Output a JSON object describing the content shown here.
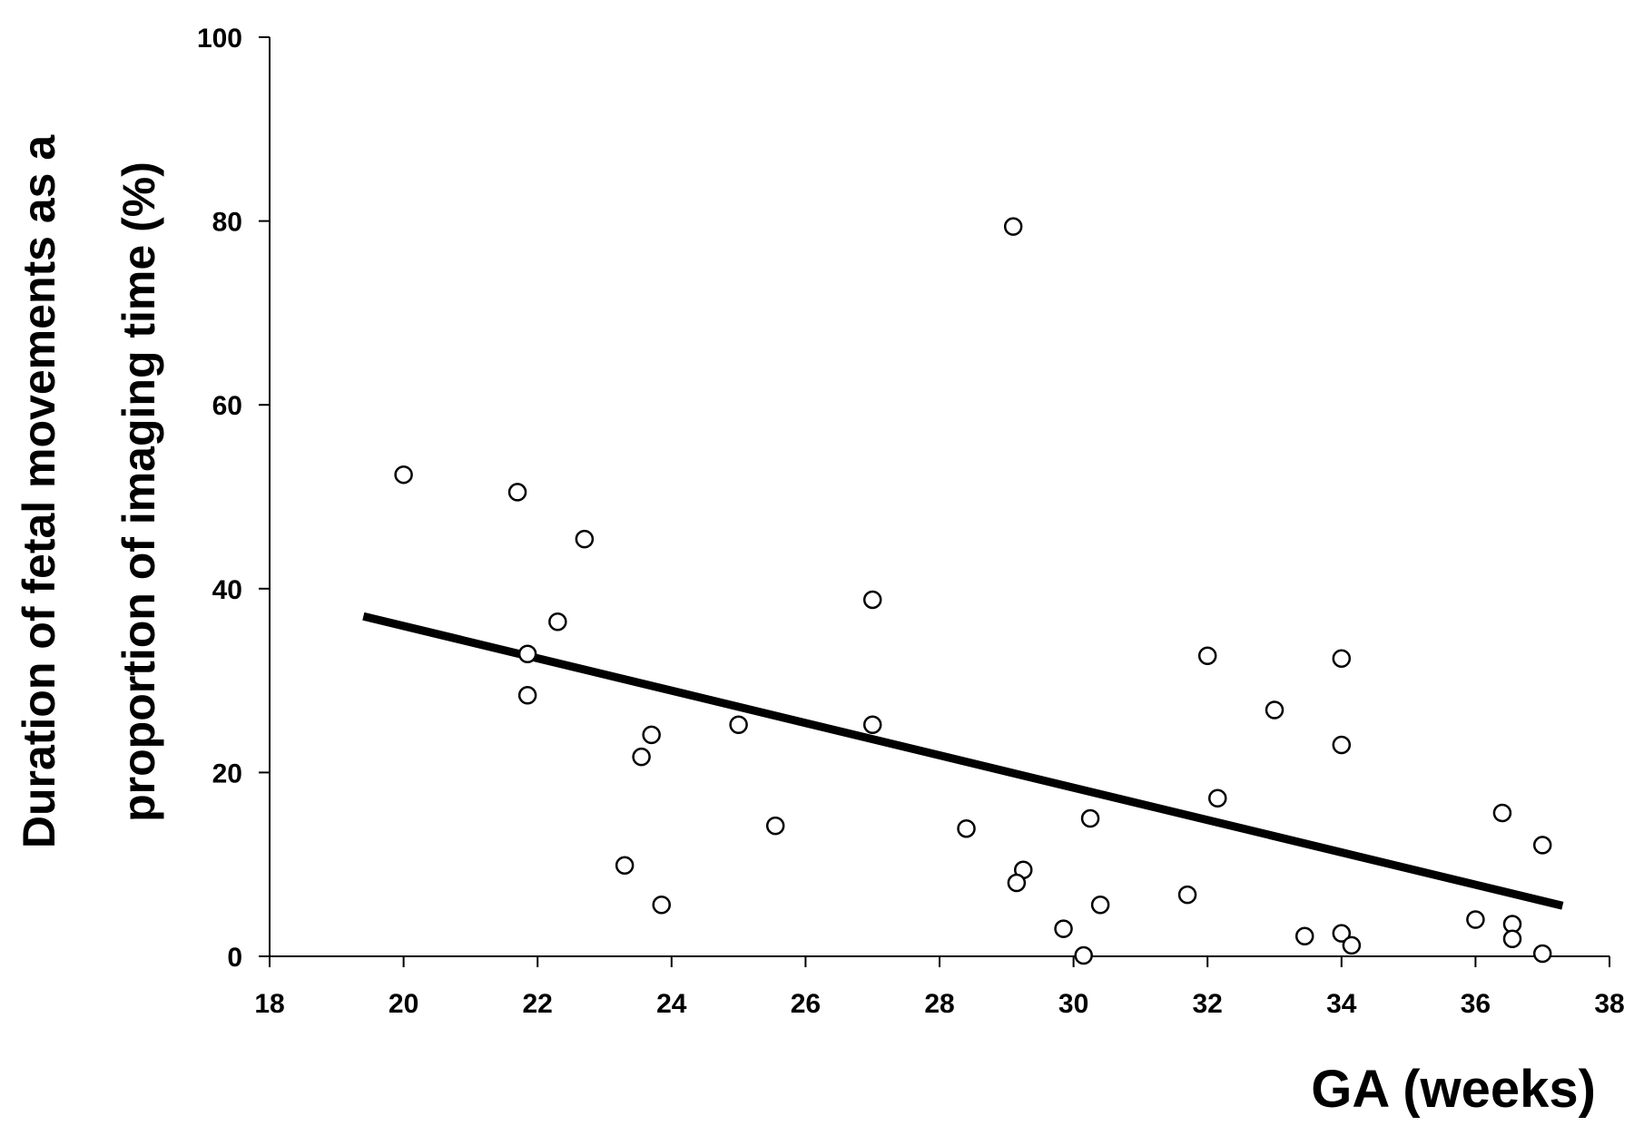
{
  "chart_data": {
    "type": "scatter",
    "xlabel": "GA (weeks)",
    "ylabel_lines": [
      "Duration of fetal movements as a",
      "proportion of imaging time (%)"
    ],
    "xlim": [
      18,
      38
    ],
    "ylim": [
      0,
      100
    ],
    "xticks": [
      18,
      20,
      22,
      24,
      26,
      28,
      30,
      32,
      34,
      36,
      38
    ],
    "yticks": [
      0,
      20,
      40,
      60,
      80,
      100
    ],
    "grid": false,
    "points": [
      {
        "x": 20.0,
        "y": 52.4
      },
      {
        "x": 21.7,
        "y": 50.5
      },
      {
        "x": 22.7,
        "y": 45.4
      },
      {
        "x": 22.3,
        "y": 36.4
      },
      {
        "x": 21.85,
        "y": 32.9
      },
      {
        "x": 21.85,
        "y": 28.4
      },
      {
        "x": 23.7,
        "y": 24.1
      },
      {
        "x": 23.55,
        "y": 21.7
      },
      {
        "x": 23.3,
        "y": 9.9
      },
      {
        "x": 23.85,
        "y": 5.6
      },
      {
        "x": 25.0,
        "y": 25.2
      },
      {
        "x": 25.55,
        "y": 14.2
      },
      {
        "x": 27.0,
        "y": 38.8
      },
      {
        "x": 27.0,
        "y": 25.2
      },
      {
        "x": 28.4,
        "y": 13.9
      },
      {
        "x": 29.1,
        "y": 79.4
      },
      {
        "x": 29.25,
        "y": 9.4
      },
      {
        "x": 29.15,
        "y": 8.0
      },
      {
        "x": 29.85,
        "y": 3.0
      },
      {
        "x": 30.15,
        "y": 0.1
      },
      {
        "x": 30.25,
        "y": 15.0
      },
      {
        "x": 30.4,
        "y": 5.6
      },
      {
        "x": 31.7,
        "y": 6.7
      },
      {
        "x": 32.0,
        "y": 32.7
      },
      {
        "x": 32.15,
        "y": 17.2
      },
      {
        "x": 33.0,
        "y": 26.8
      },
      {
        "x": 33.45,
        "y": 2.2
      },
      {
        "x": 34.0,
        "y": 32.4
      },
      {
        "x": 34.0,
        "y": 23.0
      },
      {
        "x": 34.0,
        "y": 2.5
      },
      {
        "x": 34.15,
        "y": 1.2
      },
      {
        "x": 36.0,
        "y": 4.0
      },
      {
        "x": 36.4,
        "y": 15.6
      },
      {
        "x": 36.55,
        "y": 3.5
      },
      {
        "x": 36.55,
        "y": 1.9
      },
      {
        "x": 37.0,
        "y": 12.1
      },
      {
        "x": 37.0,
        "y": 0.3
      }
    ],
    "trendline": {
      "x1": 19.4,
      "y1": 37.0,
      "x2": 37.3,
      "y2": 5.5
    },
    "colors": {
      "marker_fill": "#ffffff",
      "marker_stroke": "#000000",
      "line": "#000000"
    }
  }
}
